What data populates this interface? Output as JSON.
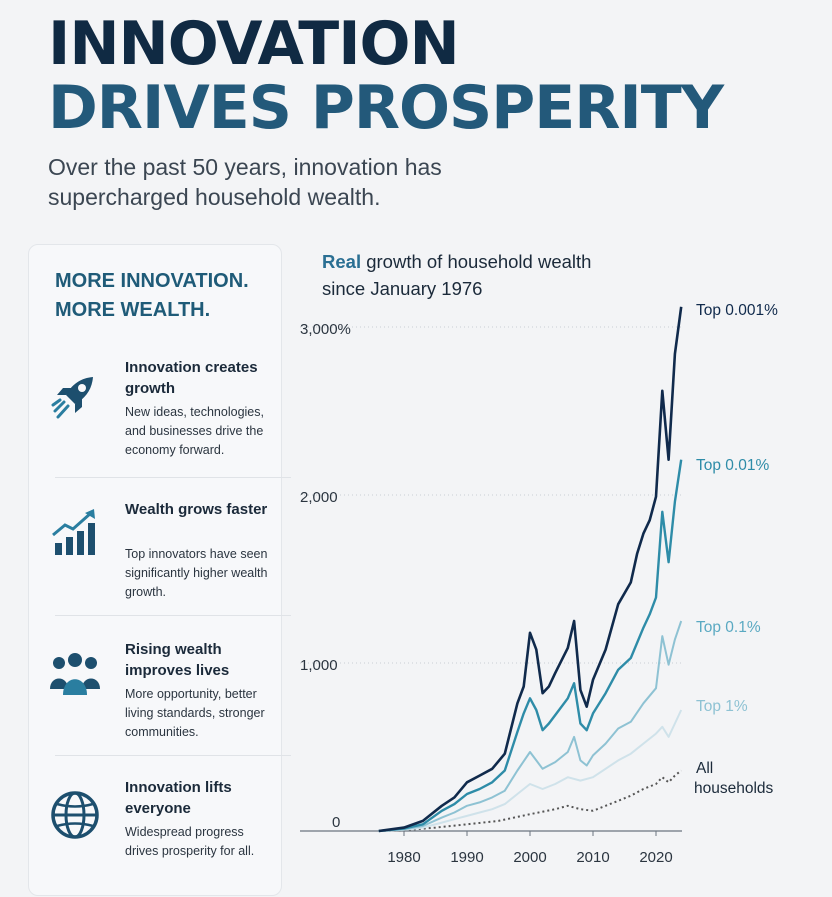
{
  "header": {
    "title_line1": "INNOVATION",
    "title_line2": "DRIVES PROSPERITY",
    "subtitle": "Over the past 50 years, innovation has supercharged household wealth."
  },
  "sidebar": {
    "heading_line1": "MORE INNOVATION.",
    "heading_line2": "MORE WEALTH.",
    "items": [
      {
        "icon": "rocket-icon",
        "title": "Innovation creates growth",
        "desc": "New ideas, technologies, and businesses drive the economy forward."
      },
      {
        "icon": "bar-growth-icon",
        "title": "Wealth grows faster",
        "desc": "Top innovators have seen significantly higher wealth growth."
      },
      {
        "icon": "people-icon",
        "title": "Rising wealth improves lives",
        "desc": "More opportunity, better living standards, stronger communities."
      },
      {
        "icon": "globe-icon",
        "title": "Innovation lifts everyone",
        "desc": "Widespread progress drives prosperity for all."
      }
    ]
  },
  "colors": {
    "title_dark": "#102a43",
    "title_accent": "#23597a",
    "top_0001": "#102a4c",
    "top_001": "#2e8ca8",
    "top_01": "#8ec2d3",
    "top_1": "#cfe2ea",
    "all": "#555555"
  },
  "chart_data": {
    "type": "line",
    "title_accent": "Real",
    "title_rest": "growth of household wealth",
    "title_line2": "since January 1976",
    "xlabel": "",
    "ylabel": "",
    "xlim": [
      1976,
      2024
    ],
    "ylim": [
      0,
      3300
    ],
    "y_ticks": [
      {
        "value": 0,
        "label": "0"
      },
      {
        "value": 1000,
        "label": "1,000"
      },
      {
        "value": 2000,
        "label": "2,000"
      },
      {
        "value": 3000,
        "label": "3,000%"
      }
    ],
    "x_ticks": [
      1980,
      1990,
      2000,
      2010,
      2020
    ],
    "grid": "horizontal dotted",
    "series": [
      {
        "name": "Top 0.001%",
        "color_key": "top_0001",
        "points": [
          [
            1976,
            0
          ],
          [
            1980,
            20
          ],
          [
            1983,
            60
          ],
          [
            1986,
            150
          ],
          [
            1988,
            200
          ],
          [
            1990,
            290
          ],
          [
            1992,
            330
          ],
          [
            1994,
            370
          ],
          [
            1996,
            460
          ],
          [
            1998,
            760
          ],
          [
            1999,
            860
          ],
          [
            2000,
            1180
          ],
          [
            2001,
            1080
          ],
          [
            2002,
            820
          ],
          [
            2003,
            860
          ],
          [
            2004,
            940
          ],
          [
            2006,
            1090
          ],
          [
            2007,
            1250
          ],
          [
            2008,
            840
          ],
          [
            2009,
            740
          ],
          [
            2010,
            900
          ],
          [
            2012,
            1080
          ],
          [
            2014,
            1350
          ],
          [
            2016,
            1480
          ],
          [
            2017,
            1650
          ],
          [
            2018,
            1770
          ],
          [
            2019,
            1850
          ],
          [
            2020,
            1990
          ],
          [
            2021,
            2620
          ],
          [
            2022,
            2210
          ],
          [
            2023,
            2840
          ],
          [
            2024,
            3120
          ]
        ]
      },
      {
        "name": "Top 0.01%",
        "color_key": "top_001",
        "points": [
          [
            1976,
            0
          ],
          [
            1980,
            15
          ],
          [
            1983,
            40
          ],
          [
            1986,
            120
          ],
          [
            1988,
            160
          ],
          [
            1990,
            220
          ],
          [
            1992,
            250
          ],
          [
            1994,
            290
          ],
          [
            1996,
            360
          ],
          [
            1998,
            590
          ],
          [
            1999,
            700
          ],
          [
            2000,
            790
          ],
          [
            2001,
            720
          ],
          [
            2002,
            600
          ],
          [
            2003,
            640
          ],
          [
            2004,
            690
          ],
          [
            2006,
            790
          ],
          [
            2007,
            880
          ],
          [
            2008,
            640
          ],
          [
            2009,
            600
          ],
          [
            2010,
            700
          ],
          [
            2012,
            820
          ],
          [
            2014,
            960
          ],
          [
            2016,
            1030
          ],
          [
            2018,
            1210
          ],
          [
            2019,
            1290
          ],
          [
            2020,
            1390
          ],
          [
            2021,
            1900
          ],
          [
            2022,
            1600
          ],
          [
            2023,
            1960
          ],
          [
            2024,
            2210
          ]
        ]
      },
      {
        "name": "Top 0.1%",
        "color_key": "top_01",
        "points": [
          [
            1976,
            0
          ],
          [
            1980,
            10
          ],
          [
            1983,
            30
          ],
          [
            1986,
            80
          ],
          [
            1988,
            110
          ],
          [
            1990,
            150
          ],
          [
            1992,
            170
          ],
          [
            1994,
            200
          ],
          [
            1996,
            240
          ],
          [
            1998,
            360
          ],
          [
            2000,
            470
          ],
          [
            2001,
            420
          ],
          [
            2002,
            370
          ],
          [
            2004,
            410
          ],
          [
            2006,
            470
          ],
          [
            2007,
            560
          ],
          [
            2008,
            420
          ],
          [
            2009,
            390
          ],
          [
            2010,
            450
          ],
          [
            2012,
            520
          ],
          [
            2014,
            610
          ],
          [
            2016,
            650
          ],
          [
            2018,
            760
          ],
          [
            2020,
            850
          ],
          [
            2021,
            1160
          ],
          [
            2022,
            990
          ],
          [
            2023,
            1140
          ],
          [
            2024,
            1250
          ]
        ]
      },
      {
        "name": "Top 1%",
        "color_key": "top_1",
        "points": [
          [
            1976,
            0
          ],
          [
            1980,
            8
          ],
          [
            1983,
            20
          ],
          [
            1986,
            50
          ],
          [
            1988,
            70
          ],
          [
            1990,
            90
          ],
          [
            1992,
            110
          ],
          [
            1994,
            130
          ],
          [
            1996,
            160
          ],
          [
            1998,
            220
          ],
          [
            2000,
            280
          ],
          [
            2002,
            250
          ],
          [
            2004,
            280
          ],
          [
            2006,
            320
          ],
          [
            2008,
            300
          ],
          [
            2010,
            320
          ],
          [
            2012,
            370
          ],
          [
            2014,
            420
          ],
          [
            2016,
            460
          ],
          [
            2018,
            520
          ],
          [
            2020,
            580
          ],
          [
            2021,
            620
          ],
          [
            2022,
            560
          ],
          [
            2023,
            640
          ],
          [
            2024,
            720
          ]
        ]
      },
      {
        "name": "All households",
        "color_key": "all",
        "points": [
          [
            1976,
            0
          ],
          [
            1980,
            5
          ],
          [
            1985,
            20
          ],
          [
            1990,
            40
          ],
          [
            1995,
            60
          ],
          [
            2000,
            100
          ],
          [
            2004,
            130
          ],
          [
            2006,
            150
          ],
          [
            2008,
            130
          ],
          [
            2010,
            120
          ],
          [
            2012,
            150
          ],
          [
            2014,
            180
          ],
          [
            2016,
            210
          ],
          [
            2018,
            250
          ],
          [
            2020,
            280
          ],
          [
            2021,
            320
          ],
          [
            2022,
            290
          ],
          [
            2023,
            330
          ],
          [
            2024,
            360
          ]
        ]
      }
    ],
    "series_labels": [
      {
        "line1": "Top 0.001%",
        "line2": ""
      },
      {
        "line1": "Top 0.01%",
        "line2": ""
      },
      {
        "line1": "Top 0.1%",
        "line2": ""
      },
      {
        "line1": "Top 1%",
        "line2": ""
      },
      {
        "line1": "All",
        "line2": "households"
      }
    ]
  }
}
